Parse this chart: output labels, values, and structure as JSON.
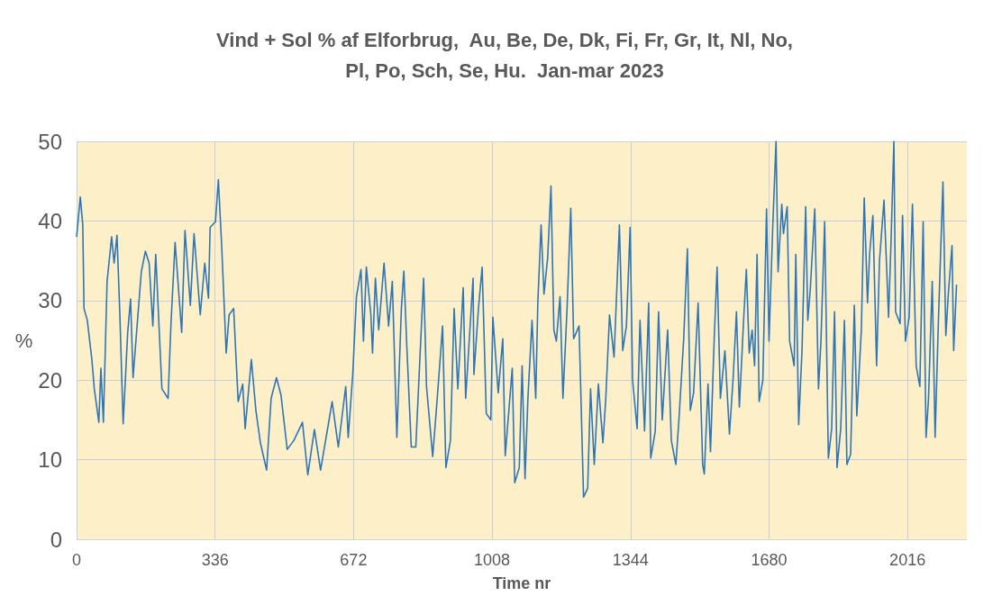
{
  "chart_data": {
    "type": "line",
    "title": "Vind + Sol % af Elforbrug,  Au, Be, De, Dk, Fi, Fr, Gr, It, Nl, No,\nPl, Po, Sch, Se, Hu.  Jan-mar 2023",
    "xlabel": "Time nr",
    "ylabel": "%",
    "xlim": [
      0,
      2160
    ],
    "xticks": [
      0,
      336,
      672,
      1008,
      1344,
      1680,
      2016
    ],
    "ylim": [
      0,
      50
    ],
    "yticks": [
      0,
      10,
      20,
      30,
      40,
      50
    ],
    "grid": true,
    "marker": "none",
    "line_style": "solid",
    "series": [
      {
        "color": "#2e75b6",
        "x": [
          0,
          9,
          15,
          18,
          26,
          37,
          43,
          54,
          59,
          65,
          74,
          85,
          91,
          98,
          105,
          113,
          124,
          131,
          137,
          157,
          167,
          176,
          185,
          192,
          207,
          222,
          229,
          239,
          255,
          263,
          276,
          285,
          300,
          311,
          320,
          324,
          337,
          344,
          352,
          363,
          370,
          381,
          392,
          403,
          409,
          424,
          435,
          446,
          461,
          472,
          485,
          496,
          511,
          527,
          548,
          561,
          577,
          592,
          609,
          620,
          635,
          653,
          659,
          670,
          679,
          690,
          696,
          703,
          714,
          718,
          725,
          733,
          746,
          757,
          766,
          777,
          788,
          794,
          801,
          812,
          823,
          842,
          849,
          864,
          875,
          888,
          896,
          907,
          916,
          925,
          938,
          944,
          962,
          964,
          975,
          984,
          994,
          1005,
          1010,
          1023,
          1034,
          1040,
          1057,
          1063,
          1074,
          1081,
          1088,
          1095,
          1105,
          1114,
          1119,
          1127,
          1134,
          1143,
          1151,
          1158,
          1164,
          1173,
          1180,
          1190,
          1199,
          1206,
          1219,
          1223,
          1230,
          1240,
          1247,
          1256,
          1266,
          1277,
          1284,
          1293,
          1304,
          1310,
          1317,
          1325,
          1334,
          1343,
          1349,
          1360,
          1367,
          1378,
          1388,
          1393,
          1404,
          1412,
          1421,
          1434,
          1443,
          1454,
          1462,
          1473,
          1482,
          1489,
          1497,
          1508,
          1519,
          1523,
          1532,
          1538,
          1547,
          1554,
          1562,
          1573,
          1584,
          1593,
          1601,
          1608,
          1619,
          1625,
          1632,
          1639,
          1645,
          1651,
          1656,
          1665,
          1674,
          1680,
          1689,
          1697,
          1702,
          1711,
          1715,
          1724,
          1730,
          1741,
          1745,
          1752,
          1760,
          1769,
          1774,
          1780,
          1791,
          1800,
          1806,
          1815,
          1824,
          1832,
          1839,
          1845,
          1854,
          1863,
          1869,
          1878,
          1887,
          1893,
          1904,
          1911,
          1919,
          1924,
          1932,
          1941,
          1948,
          1959,
          1970,
          1976,
          1983,
          1987,
          1998,
          2004,
          2011,
          2020,
          2028,
          2037,
          2046,
          2054,
          2061,
          2067,
          2076,
          2083,
          2091,
          2102,
          2109,
          2115,
          2124,
          2128,
          2135
        ],
        "values": [
          38,
          43,
          39.5,
          29,
          27.5,
          22.6,
          18.9,
          14.7,
          21.5,
          14.7,
          32.4,
          38,
          34.7,
          38.2,
          28.2,
          14.5,
          26,
          30.2,
          20.3,
          33.6,
          36.2,
          34.7,
          26.8,
          35.8,
          18.9,
          17.7,
          27.1,
          37.3,
          26,
          38.8,
          29.4,
          38.4,
          28.2,
          34.7,
          30.3,
          39.2,
          39.9,
          45.2,
          36.9,
          23.4,
          28.2,
          29,
          17.3,
          19.5,
          13.9,
          22.6,
          16.2,
          12.1,
          8.7,
          17.7,
          20.3,
          18.1,
          11.3,
          12.4,
          14.7,
          8.1,
          13.8,
          8.7,
          13.9,
          17.3,
          11.6,
          19.2,
          12.8,
          20.7,
          30.5,
          33.9,
          24.9,
          34.2,
          28.2,
          23.4,
          32.8,
          26.3,
          34.7,
          26.8,
          32.4,
          12.8,
          29,
          33.7,
          24.5,
          11.6,
          11.6,
          32.8,
          19.2,
          10.4,
          17.7,
          26.8,
          9,
          12.4,
          29,
          18.9,
          31.6,
          17.7,
          32.8,
          20.7,
          29,
          34.2,
          15.8,
          15,
          27.9,
          18.4,
          25.2,
          10.5,
          21.5,
          7.1,
          9,
          21.8,
          7.6,
          17.7,
          27.5,
          17.7,
          29.7,
          39.5,
          30.8,
          35.4,
          44.4,
          26.3,
          24.9,
          30.5,
          17.7,
          29,
          41.6,
          25.2,
          26.8,
          19.2,
          5.3,
          6.4,
          18.9,
          9.4,
          19.5,
          12.1,
          17.7,
          28.2,
          22.9,
          30.5,
          39.5,
          23.7,
          26.8,
          39.2,
          20,
          13.9,
          27.5,
          13.6,
          29.7,
          10.2,
          13.6,
          28.6,
          15,
          26.3,
          12.4,
          9.4,
          15.5,
          25.2,
          36.5,
          16.2,
          18.4,
          29.7,
          9.4,
          8.2,
          19.5,
          11,
          25.2,
          34.2,
          17.7,
          23.7,
          13.2,
          20.3,
          28.6,
          16.6,
          28.2,
          33.9,
          23.4,
          26.3,
          21.8,
          35.8,
          17.3,
          20,
          41.5,
          24.9,
          39.2,
          50,
          33.6,
          42.1,
          38.4,
          41.8,
          24.9,
          21.8,
          35.8,
          14.4,
          23.7,
          41.8,
          27.5,
          31.3,
          41.5,
          18.9,
          24.9,
          39.9,
          10.2,
          13.9,
          28.6,
          9,
          13.9,
          27.5,
          9.4,
          10.7,
          29.4,
          15.5,
          26.3,
          42.9,
          29.7,
          35.8,
          40.7,
          21.8,
          35,
          42.6,
          27.9,
          37.3,
          50,
          28.6,
          27.1,
          40.7,
          24.9,
          27.9,
          42.1,
          21.8,
          19.2,
          39.9,
          12.8,
          17.7,
          32.4,
          12.8,
          27.5,
          44.9,
          25.6,
          30.8,
          36.9,
          23.7,
          32
        ]
      }
    ]
  }
}
